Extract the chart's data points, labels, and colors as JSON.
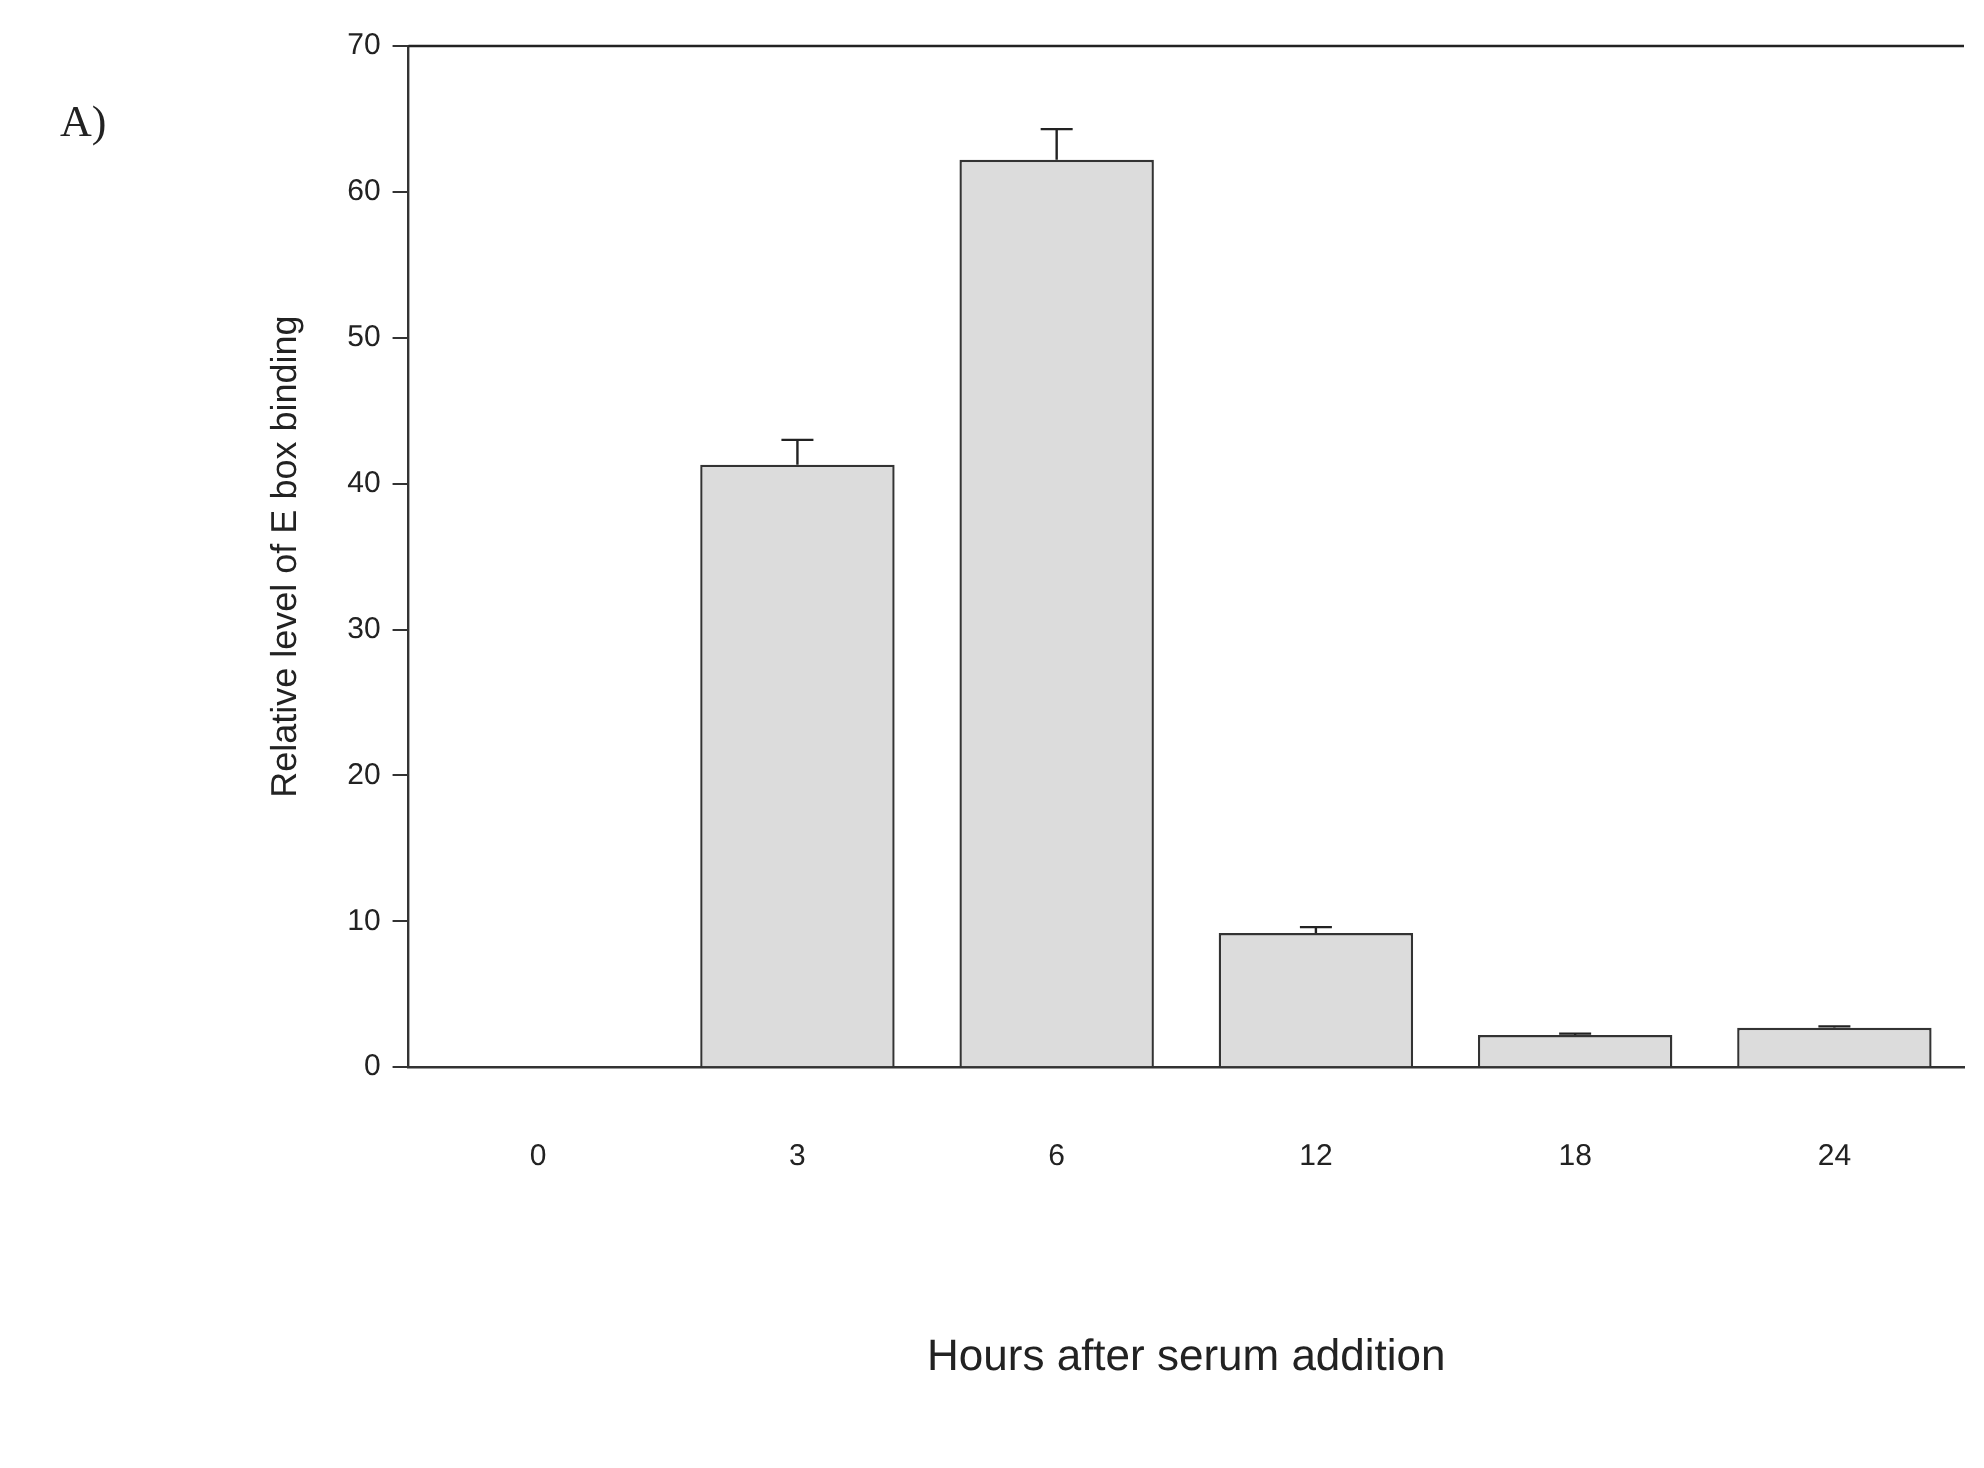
{
  "chart_data": {
    "type": "bar",
    "xlabel": "Hours after serum addition",
    "ylabel": "Relative level of E box binding",
    "annotations": [
      "A)"
    ],
    "categories": [
      "0",
      "3",
      "6",
      "12",
      "18",
      "24"
    ],
    "values": [
      0,
      41.3,
      62.2,
      9.2,
      2.2,
      2.7
    ],
    "errors": [
      null,
      [
        41.3,
        43.0
      ],
      [
        62.2,
        64.3
      ],
      [
        9.2,
        9.6
      ],
      [
        2.2,
        2.3
      ],
      [
        2.7,
        2.8
      ]
    ],
    "color": "#dcdcdc",
    "ylim": [
      0,
      70
    ],
    "yticks": [
      0,
      10,
      20,
      30,
      40,
      50,
      60,
      70
    ],
    "grid": false,
    "legend": false
  }
}
